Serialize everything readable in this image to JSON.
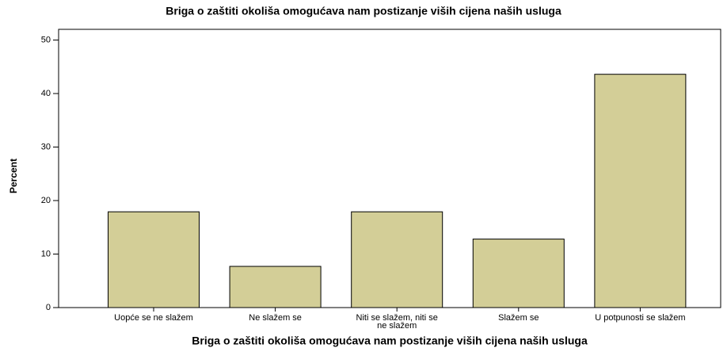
{
  "chart_data": {
    "type": "bar",
    "title": "Briga o zaštiti okoliša omogućava nam postizanje viših cijena naših usluga",
    "x_label": "Briga o zaštiti okoliša omogućava nam postizanje viših cijena naših usluga",
    "y_label": "Percent",
    "categories": [
      "Uopće se ne slažem",
      "Ne slažem se",
      "Niti se slažem, niti se ne slažem",
      "Slažem se",
      "U potpunosti se slažem"
    ],
    "values": [
      17.9,
      7.7,
      17.9,
      12.8,
      43.6
    ],
    "color": "#d3ce97",
    "ylim": [
      0,
      52
    ],
    "yticks": [
      0,
      10,
      20,
      30,
      40,
      50
    ],
    "grid": false
  }
}
